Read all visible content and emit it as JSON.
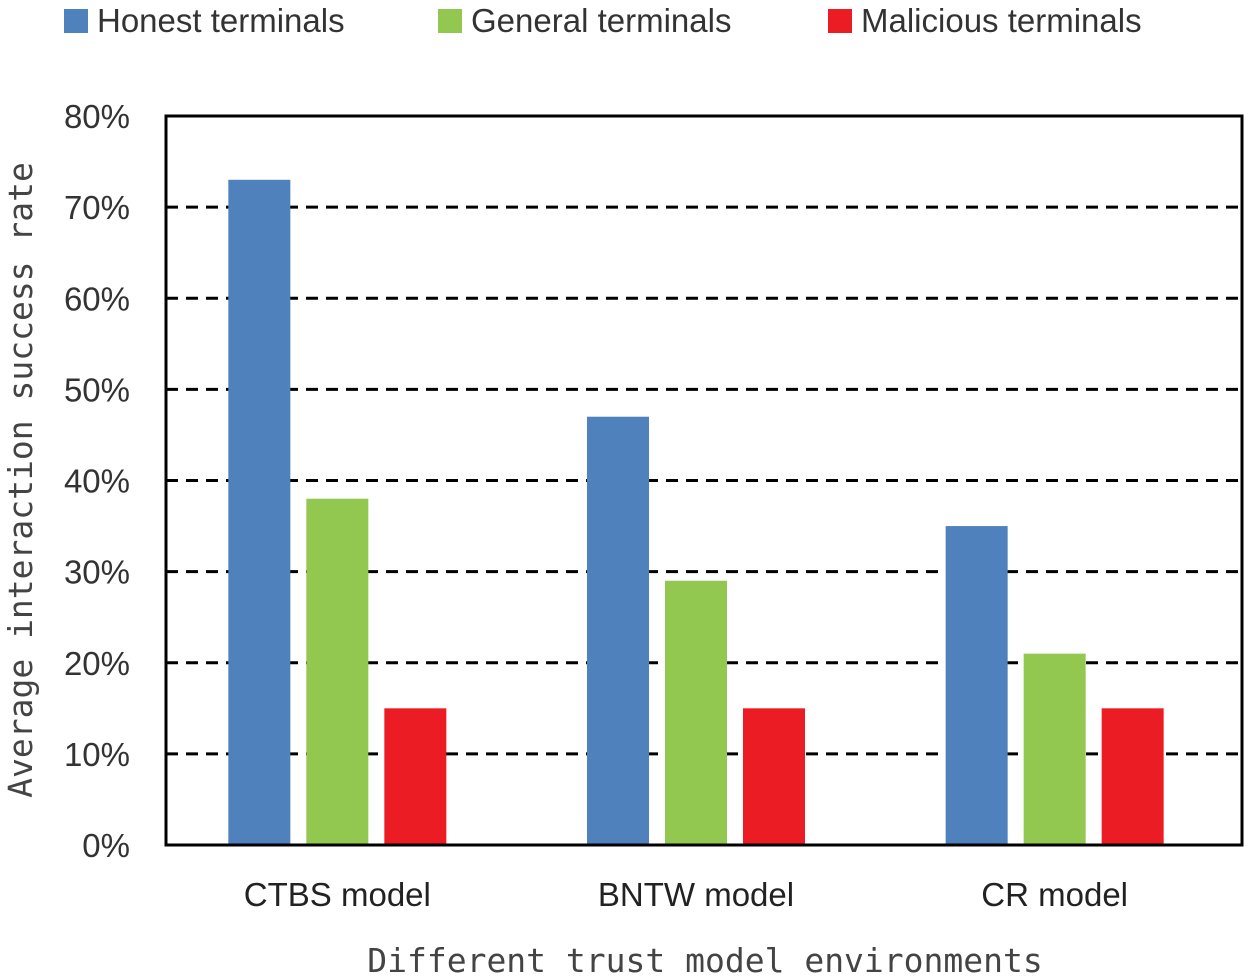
{
  "chart_data": {
    "type": "bar",
    "title": "",
    "xlabel": "Different trust model environments",
    "ylabel": "Average interaction success rate",
    "categories": [
      "CTBS model",
      "BNTW model",
      "CR model"
    ],
    "series": [
      {
        "name": "Honest terminals",
        "color": "#4f81bd",
        "values": [
          73,
          47,
          35
        ]
      },
      {
        "name": "General terminals",
        "color": "#92c850",
        "values": [
          38,
          29,
          21
        ]
      },
      {
        "name": "Malicious terminals",
        "color": "#ec1c24",
        "values": [
          15,
          15,
          15
        ]
      }
    ],
    "ylim": [
      0,
      80
    ],
    "yticks": [
      0,
      10,
      20,
      30,
      40,
      50,
      60,
      70,
      80
    ],
    "ytick_labels": [
      "0%",
      "10%",
      "20%",
      "30%",
      "40%",
      "50%",
      "60%",
      "70%",
      "80%"
    ],
    "grid": "dashed horizontal",
    "legend_position": "top"
  }
}
